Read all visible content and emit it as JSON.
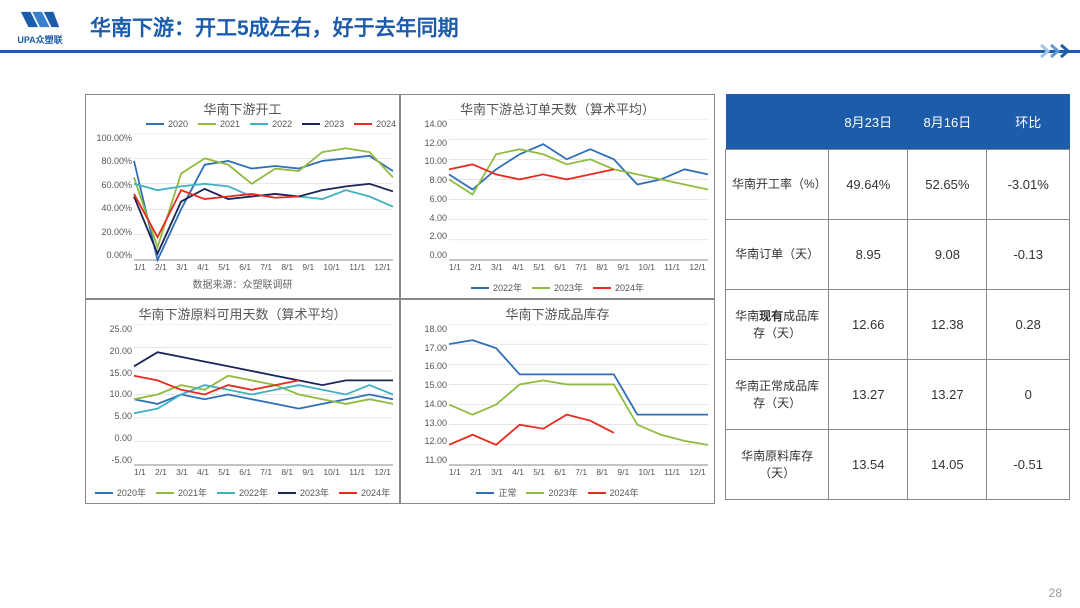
{
  "header": {
    "logo_text": "UPA众塑联",
    "title": "华南下游：开工5成左右，好于去年同期"
  },
  "page_number": "28",
  "colors": {
    "brand": "#1c5caa",
    "s2020": "#2f6fb7",
    "s2021": "#8fbc3f",
    "s2022": "#3fb1c1",
    "s2023": "#1b2556",
    "s2024": "#e82a1f",
    "normal": "#2f6fb7",
    "grid": "#cccccc",
    "axis": "#888888",
    "border": "#888888",
    "neg": "#0a8f0a",
    "pos": "#d6281f"
  },
  "x_months": [
    "1/1",
    "2/1",
    "3/1",
    "4/1",
    "5/1",
    "6/1",
    "7/1",
    "8/1",
    "9/1",
    "10/1",
    "11/1",
    "12/1"
  ],
  "charts": {
    "c1": {
      "title": "华南下游开工",
      "subtitle": "数据来源：众塑联调研",
      "y_min": 0,
      "y_max": 100,
      "y_step": 20,
      "y_suffix": "%",
      "y_decimals": 2,
      "legend_pos": "top",
      "series": [
        {
          "name": "2020",
          "color_key": "s2020",
          "data": [
            78,
            0,
            40,
            75,
            78,
            72,
            74,
            72,
            78,
            80,
            82,
            70
          ]
        },
        {
          "name": "2021",
          "color_key": "s2021",
          "data": [
            65,
            10,
            68,
            80,
            75,
            60,
            72,
            70,
            85,
            88,
            85,
            65
          ]
        },
        {
          "name": "2022",
          "color_key": "s2022",
          "data": [
            60,
            55,
            58,
            60,
            58,
            50,
            52,
            50,
            48,
            55,
            50,
            42
          ]
        },
        {
          "name": "2023",
          "color_key": "s2023",
          "data": [
            50,
            5,
            46,
            56,
            48,
            50,
            52,
            50,
            55,
            58,
            60,
            54
          ]
        },
        {
          "name": "2024",
          "color_key": "s2024",
          "data": [
            52,
            18,
            55,
            48,
            50,
            52,
            49,
            50,
            null,
            null,
            null,
            null
          ]
        }
      ]
    },
    "c2": {
      "title": "华南下游总订单天数（算术平均）",
      "y_min": 0,
      "y_max": 14,
      "y_step": 2,
      "y_suffix": "",
      "y_decimals": 2,
      "legend_pos": "bottom",
      "series": [
        {
          "name": "2022年",
          "color_key": "s2020",
          "data": [
            8.5,
            7.0,
            9.0,
            10.5,
            11.5,
            10.0,
            11.0,
            10.0,
            7.5,
            8.0,
            9.0,
            8.5
          ]
        },
        {
          "name": "2023年",
          "color_key": "s2021",
          "data": [
            8.0,
            6.5,
            10.5,
            11.0,
            10.5,
            9.5,
            10.0,
            9.0,
            8.5,
            8.0,
            7.5,
            7.0
          ]
        },
        {
          "name": "2024年",
          "color_key": "s2024",
          "data": [
            9.0,
            9.5,
            8.5,
            8.0,
            8.5,
            8.0,
            8.5,
            9.0,
            null,
            null,
            null,
            null
          ]
        }
      ]
    },
    "c3": {
      "title": "华南下游原料可用天数（算术平均）",
      "y_min": -5,
      "y_max": 25,
      "y_step": 5,
      "y_suffix": "",
      "y_decimals": 2,
      "legend_pos": "bottom",
      "series": [
        {
          "name": "2020年",
          "color_key": "s2020",
          "data": [
            9,
            8,
            10,
            9,
            10,
            9,
            8,
            7,
            8,
            9,
            10,
            9
          ]
        },
        {
          "name": "2021年",
          "color_key": "s2021",
          "data": [
            9,
            10,
            12,
            11,
            14,
            13,
            12,
            10,
            9,
            8,
            9,
            8
          ]
        },
        {
          "name": "2022年",
          "color_key": "s2022",
          "data": [
            6,
            7,
            10,
            12,
            11,
            10,
            11,
            12,
            11,
            10,
            12,
            10
          ]
        },
        {
          "name": "2023年",
          "color_key": "s2023",
          "data": [
            16,
            19,
            18,
            17,
            16,
            15,
            14,
            13,
            12,
            13,
            13,
            13
          ]
        },
        {
          "name": "2024年",
          "color_key": "s2024",
          "data": [
            14,
            13,
            11,
            10,
            12,
            11,
            12,
            13,
            null,
            null,
            null,
            null
          ]
        }
      ]
    },
    "c4": {
      "title": "华南下游成品库存",
      "y_min": 11,
      "y_max": 18,
      "y_step": 1,
      "y_suffix": "",
      "y_decimals": 2,
      "legend_pos": "bottom",
      "series": [
        {
          "name": "正常",
          "color_key": "normal",
          "data": [
            17.0,
            17.2,
            16.8,
            15.5,
            15.5,
            15.5,
            15.5,
            15.5,
            13.5,
            13.5,
            13.5,
            13.5
          ]
        },
        {
          "name": "2023年",
          "color_key": "s2021",
          "data": [
            14.0,
            13.5,
            14.0,
            15.0,
            15.2,
            15.0,
            15.0,
            15.0,
            13.0,
            12.5,
            12.2,
            12.0
          ]
        },
        {
          "name": "2024年",
          "color_key": "s2024",
          "data": [
            12.0,
            12.5,
            12.0,
            13.0,
            12.8,
            13.5,
            13.2,
            12.6,
            null,
            null,
            null,
            null
          ]
        }
      ]
    }
  },
  "table": {
    "headers": [
      "",
      "8月23日",
      "8月16日",
      "环比"
    ],
    "col_widths": [
      "30%",
      "23%",
      "23%",
      "24%"
    ],
    "rows": [
      {
        "label": "华南开工率（%）",
        "v1": "49.64%",
        "v2": "52.65%",
        "delta": "-3.01%",
        "delta_cls": "neg"
      },
      {
        "label": "华南订单（天）",
        "v1": "8.95",
        "v2": "9.08",
        "delta": "-0.13",
        "delta_cls": "neg"
      },
      {
        "label_html": [
          "华南",
          "现有",
          "成品库存（天）"
        ],
        "label": "华南现有成品库存（天）",
        "v1": "12.66",
        "v2": "12.38",
        "delta": "0.28",
        "delta_cls": "pos"
      },
      {
        "label": "华南正常成品库存（天）",
        "v1": "13.27",
        "v2": "13.27",
        "delta": "0",
        "delta_cls": ""
      },
      {
        "label": "华南原料库存（天）",
        "v1": "13.54",
        "v2": "14.05",
        "delta": "-0.51",
        "delta_cls": "neg"
      }
    ]
  }
}
